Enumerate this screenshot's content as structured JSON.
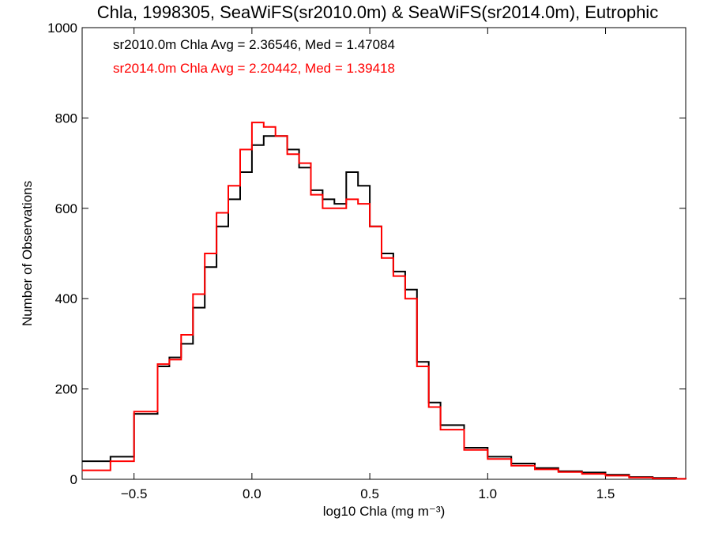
{
  "chart_data": {
    "type": "line",
    "title": "Chla, 1998305, SeaWiFS(sr2010.0m) & SeaWiFS(sr2014.0m), Eutrophic",
    "xlabel": "log10 Chla (mg m⁻³)",
    "ylabel": "Number of Observations",
    "xlim": [
      -0.72,
      1.84
    ],
    "ylim": [
      0,
      1000
    ],
    "x_ticks": [
      -0.5,
      0.0,
      0.5,
      1.0,
      1.5
    ],
    "x_tick_labels": [
      "−0.5",
      "0.0",
      "0.5",
      "1.0",
      "1.5"
    ],
    "y_ticks": [
      0,
      200,
      400,
      600,
      800,
      1000
    ],
    "y_tick_labels": [
      "0",
      "200",
      "400",
      "600",
      "800",
      "1000"
    ],
    "grid": false,
    "legend_position": "top-left",
    "legend": [
      {
        "text": "sr2010.0m Chla Avg = 2.36546, Med = 1.47084",
        "color": "#000000"
      },
      {
        "text": "sr2014.0m Chla Avg = 2.20442, Med = 1.39418",
        "color": "#ff0000"
      }
    ],
    "series": [
      {
        "color": "#000000",
        "x": [
          -0.72,
          -0.6,
          -0.5,
          -0.4,
          -0.35,
          -0.3,
          -0.25,
          -0.2,
          -0.15,
          -0.1,
          -0.05,
          0.0,
          0.05,
          0.1,
          0.15,
          0.2,
          0.25,
          0.3,
          0.35,
          0.4,
          0.45,
          0.5,
          0.55,
          0.6,
          0.65,
          0.7,
          0.75,
          0.8,
          0.9,
          1.0,
          1.1,
          1.2,
          1.3,
          1.4,
          1.5,
          1.6,
          1.7,
          1.8,
          1.84
        ],
        "y": [
          40,
          50,
          145,
          250,
          270,
          300,
          380,
          470,
          560,
          620,
          680,
          740,
          760,
          760,
          730,
          690,
          640,
          620,
          610,
          680,
          650,
          560,
          500,
          460,
          420,
          260,
          170,
          120,
          70,
          50,
          35,
          25,
          18,
          15,
          10,
          5,
          3,
          1,
          0
        ]
      },
      {
        "color": "#ff0000",
        "x": [
          -0.72,
          -0.6,
          -0.5,
          -0.4,
          -0.35,
          -0.3,
          -0.25,
          -0.2,
          -0.15,
          -0.1,
          -0.05,
          0.0,
          0.05,
          0.1,
          0.15,
          0.2,
          0.25,
          0.3,
          0.35,
          0.4,
          0.45,
          0.5,
          0.55,
          0.6,
          0.65,
          0.7,
          0.75,
          0.8,
          0.9,
          1.0,
          1.1,
          1.2,
          1.3,
          1.4,
          1.5,
          1.6,
          1.7,
          1.8,
          1.84
        ],
        "y": [
          20,
          40,
          150,
          255,
          265,
          320,
          410,
          500,
          590,
          650,
          730,
          790,
          780,
          760,
          720,
          700,
          630,
          600,
          600,
          620,
          610,
          560,
          490,
          450,
          400,
          250,
          160,
          110,
          65,
          45,
          30,
          22,
          16,
          12,
          8,
          4,
          2,
          1,
          0
        ]
      }
    ]
  }
}
